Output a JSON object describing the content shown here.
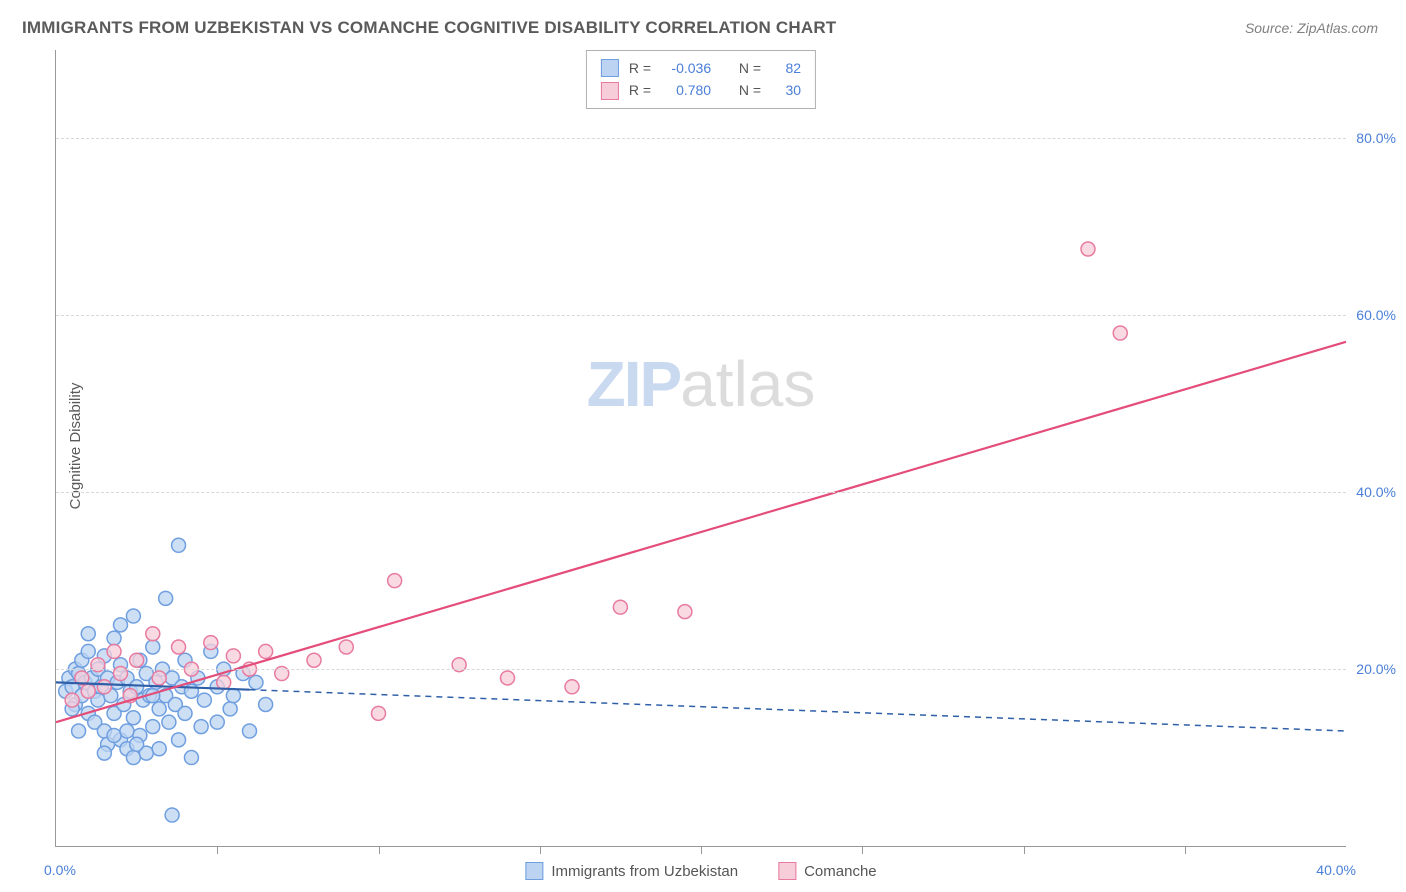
{
  "title": "IMMIGRANTS FROM UZBEKISTAN VS COMANCHE COGNITIVE DISABILITY CORRELATION CHART",
  "source_label": "Source: ZipAtlas.com",
  "ylabel": "Cognitive Disability",
  "watermark": {
    "part1": "ZIP",
    "part2": "atlas"
  },
  "chart": {
    "type": "scatter-with-regression",
    "xlim": [
      0,
      40
    ],
    "ylim": [
      0,
      90
    ],
    "x_tick_labels": {
      "left": "0.0%",
      "right": "40.0%"
    },
    "y_ticks": [
      20,
      40,
      60,
      80
    ],
    "y_tick_labels": [
      "20.0%",
      "40.0%",
      "60.0%",
      "80.0%"
    ],
    "x_minor_ticks": [
      5,
      10,
      15,
      20,
      25,
      30,
      35
    ],
    "background_color": "#ffffff",
    "grid_color": "#d8d8d8",
    "axis_color": "#999999",
    "label_color": "#4a7fd8",
    "marker_radius": 7,
    "marker_stroke_width": 1.5,
    "line_width": 2.2,
    "series": [
      {
        "name": "Immigrants from Uzbekistan",
        "short": "uzbekistan",
        "fill": "#bcd4f2",
        "stroke": "#6f9fe0",
        "line_color": "#2f5fa8",
        "line_dash": "6,5",
        "line_dash_extended": true,
        "r_value": "-0.036",
        "n_value": "82",
        "regression": {
          "x1": 0,
          "y1": 18.5,
          "x2": 40,
          "y2": 13.0
        },
        "solid_until_x": 6.0,
        "points": [
          [
            0.3,
            17.5
          ],
          [
            0.4,
            19.0
          ],
          [
            0.5,
            18.0
          ],
          [
            0.6,
            20.0
          ],
          [
            0.6,
            16.0
          ],
          [
            0.7,
            19.5
          ],
          [
            0.8,
            17.0
          ],
          [
            0.8,
            21.0
          ],
          [
            0.9,
            18.5
          ],
          [
            1.0,
            15.0
          ],
          [
            1.0,
            22.0
          ],
          [
            1.1,
            19.0
          ],
          [
            1.2,
            17.5
          ],
          [
            1.2,
            14.0
          ],
          [
            1.3,
            20.0
          ],
          [
            1.3,
            16.5
          ],
          [
            1.4,
            18.0
          ],
          [
            1.5,
            13.0
          ],
          [
            1.5,
            21.5
          ],
          [
            1.6,
            19.0
          ],
          [
            1.6,
            11.5
          ],
          [
            1.7,
            17.0
          ],
          [
            1.8,
            15.0
          ],
          [
            1.8,
            23.5
          ],
          [
            1.9,
            18.5
          ],
          [
            2.0,
            12.0
          ],
          [
            2.0,
            20.5
          ],
          [
            2.1,
            16.0
          ],
          [
            2.2,
            19.0
          ],
          [
            2.2,
            11.0
          ],
          [
            2.3,
            17.5
          ],
          [
            2.4,
            14.5
          ],
          [
            2.4,
            26.0
          ],
          [
            2.5,
            18.0
          ],
          [
            2.6,
            12.5
          ],
          [
            2.6,
            21.0
          ],
          [
            2.7,
            16.5
          ],
          [
            2.8,
            19.5
          ],
          [
            2.8,
            10.5
          ],
          [
            2.9,
            17.0
          ],
          [
            3.0,
            13.5
          ],
          [
            3.0,
            22.5
          ],
          [
            3.1,
            18.5
          ],
          [
            3.2,
            15.5
          ],
          [
            3.2,
            11.0
          ],
          [
            3.3,
            20.0
          ],
          [
            3.4,
            17.0
          ],
          [
            3.4,
            28.0
          ],
          [
            3.5,
            14.0
          ],
          [
            3.6,
            19.0
          ],
          [
            3.7,
            16.0
          ],
          [
            3.8,
            12.0
          ],
          [
            3.8,
            34.0
          ],
          [
            3.9,
            18.0
          ],
          [
            4.0,
            21.0
          ],
          [
            4.0,
            15.0
          ],
          [
            4.2,
            17.5
          ],
          [
            4.2,
            10.0
          ],
          [
            4.4,
            19.0
          ],
          [
            4.5,
            13.5
          ],
          [
            4.6,
            16.5
          ],
          [
            4.8,
            22.0
          ],
          [
            5.0,
            18.0
          ],
          [
            5.0,
            14.0
          ],
          [
            5.2,
            20.0
          ],
          [
            5.4,
            15.5
          ],
          [
            5.5,
            17.0
          ],
          [
            5.8,
            19.5
          ],
          [
            6.0,
            13.0
          ],
          [
            6.2,
            18.5
          ],
          [
            6.5,
            16.0
          ],
          [
            2.4,
            10.0
          ],
          [
            2.0,
            25.0
          ],
          [
            1.5,
            10.5
          ],
          [
            1.0,
            24.0
          ],
          [
            3.6,
            3.5
          ],
          [
            3.0,
            17.0
          ],
          [
            0.5,
            15.5
          ],
          [
            0.7,
            13.0
          ],
          [
            2.5,
            11.5
          ],
          [
            1.8,
            12.5
          ],
          [
            2.2,
            13.0
          ]
        ]
      },
      {
        "name": "Comanche",
        "short": "comanche",
        "fill": "#f7cdd9",
        "stroke": "#e77ba0",
        "line_color": "#e44d7a",
        "line_dash": "none",
        "line_dash_extended": false,
        "r_value": "0.780",
        "n_value": "30",
        "regression": {
          "x1": 0,
          "y1": 14.0,
          "x2": 40,
          "y2": 57.0
        },
        "solid_until_x": 40,
        "points": [
          [
            0.5,
            16.5
          ],
          [
            0.8,
            19.0
          ],
          [
            1.0,
            17.5
          ],
          [
            1.3,
            20.5
          ],
          [
            1.5,
            18.0
          ],
          [
            1.8,
            22.0
          ],
          [
            2.0,
            19.5
          ],
          [
            2.3,
            17.0
          ],
          [
            2.5,
            21.0
          ],
          [
            3.0,
            24.0
          ],
          [
            3.2,
            19.0
          ],
          [
            3.8,
            22.5
          ],
          [
            4.2,
            20.0
          ],
          [
            4.8,
            23.0
          ],
          [
            5.2,
            18.5
          ],
          [
            5.5,
            21.5
          ],
          [
            6.0,
            20.0
          ],
          [
            6.5,
            22.0
          ],
          [
            7.0,
            19.5
          ],
          [
            8.0,
            21.0
          ],
          [
            9.0,
            22.5
          ],
          [
            10.0,
            15.0
          ],
          [
            10.5,
            30.0
          ],
          [
            12.5,
            20.5
          ],
          [
            14.0,
            19.0
          ],
          [
            16.0,
            18.0
          ],
          [
            17.5,
            27.0
          ],
          [
            19.5,
            26.5
          ],
          [
            32.0,
            67.5
          ],
          [
            33.0,
            58.0
          ]
        ]
      }
    ]
  },
  "legend_top": {
    "r_label": "R =",
    "n_label": "N ="
  },
  "bottom_legend": {
    "series1": "Immigrants from Uzbekistan",
    "series2": "Comanche"
  }
}
